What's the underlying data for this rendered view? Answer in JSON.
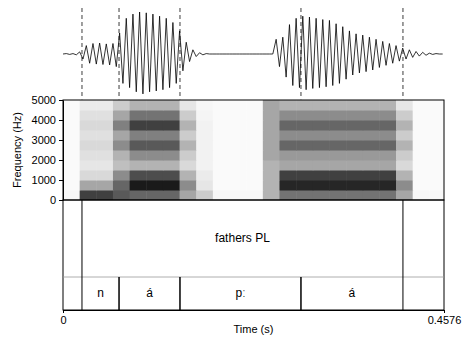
{
  "chart_data": {
    "type": "spectrogram",
    "x_label": "Time (s)",
    "y_label": "Frequency (Hz)",
    "xlim": [
      0,
      0.4576
    ],
    "xticks": [
      0,
      0.4576
    ],
    "ylim": [
      0,
      5000
    ],
    "yticks": [
      0,
      1000,
      2000,
      3000,
      4000,
      5000
    ],
    "waveform": {
      "ylim": [
        -1,
        1
      ],
      "x": [
        0,
        0.004,
        0.008,
        0.012,
        0.016,
        0.02,
        0.024,
        0.028,
        0.032,
        0.036,
        0.04,
        0.044,
        0.048,
        0.052,
        0.056,
        0.06,
        0.064,
        0.068,
        0.072,
        0.076,
        0.08,
        0.084,
        0.088,
        0.092,
        0.096,
        0.1,
        0.104,
        0.108,
        0.112,
        0.116,
        0.12,
        0.124,
        0.128,
        0.132,
        0.136,
        0.14,
        0.144,
        0.148,
        0.152,
        0.156,
        0.16,
        0.164,
        0.168,
        0.172,
        0.176,
        0.18,
        0.184,
        0.188,
        0.192,
        0.196,
        0.2,
        0.204,
        0.208,
        0.212,
        0.216,
        0.22,
        0.224,
        0.228,
        0.232,
        0.236,
        0.24,
        0.244,
        0.248,
        0.252,
        0.256,
        0.26,
        0.264,
        0.268,
        0.272,
        0.276,
        0.28,
        0.284,
        0.288,
        0.292,
        0.296,
        0.3,
        0.304,
        0.308,
        0.312,
        0.316,
        0.32,
        0.324,
        0.328,
        0.332,
        0.336,
        0.34,
        0.344,
        0.348,
        0.352,
        0.356,
        0.36,
        0.364,
        0.368,
        0.372,
        0.376,
        0.38,
        0.384,
        0.388,
        0.392,
        0.396,
        0.4,
        0.404,
        0.408,
        0.412,
        0.416,
        0.42,
        0.424,
        0.428,
        0.432,
        0.436,
        0.44,
        0.444,
        0.448,
        0.452,
        0.456
      ],
      "values": [
        0,
        0.01,
        -0.01,
        0.01,
        -0.02,
        0.05,
        -0.12,
        0.2,
        -0.22,
        0.25,
        -0.24,
        0.26,
        -0.25,
        0.24,
        -0.26,
        0.25,
        -0.3,
        0.5,
        -0.7,
        0.85,
        -0.8,
        0.95,
        -0.9,
        1.0,
        -0.95,
        0.98,
        -0.9,
        0.95,
        -0.88,
        0.9,
        -0.85,
        0.85,
        -0.8,
        0.75,
        -0.7,
        0.55,
        -0.4,
        0.28,
        -0.18,
        0.1,
        -0.06,
        0.03,
        -0.02,
        0.01,
        0,
        0,
        0,
        0,
        0,
        0,
        0,
        0,
        0,
        0,
        0,
        0,
        0,
        0,
        0,
        0,
        0,
        0,
        0,
        0,
        0.35,
        -0.3,
        0.4,
        -0.55,
        0.7,
        -0.75,
        0.85,
        -0.8,
        0.9,
        -0.85,
        0.88,
        -0.82,
        0.85,
        -0.8,
        0.82,
        -0.78,
        0.8,
        -0.75,
        0.72,
        -0.7,
        0.65,
        -0.6,
        0.55,
        -0.5,
        0.48,
        -0.45,
        0.45,
        -0.42,
        0.4,
        -0.38,
        0.35,
        -0.32,
        0.3,
        -0.27,
        0.25,
        -0.22,
        0.2,
        -0.17,
        0.14,
        -0.12,
        0.1,
        -0.08,
        0.06,
        -0.05,
        0.04,
        -0.03,
        0.02,
        -0.01,
        0.01,
        0,
        0
      ]
    },
    "spectrogram": {
      "intensity_range": [
        0,
        1
      ],
      "time_bins": [
        0,
        0.02,
        0.04,
        0.06,
        0.08,
        0.1,
        0.12,
        0.14,
        0.16,
        0.18,
        0.2,
        0.22,
        0.24,
        0.26,
        0.28,
        0.3,
        0.32,
        0.34,
        0.36,
        0.38,
        0.4,
        0.42,
        0.44,
        0.46
      ],
      "freq_bins": [
        0,
        500,
        1000,
        1500,
        2000,
        2500,
        3000,
        3500,
        4000,
        4500,
        5000
      ],
      "cells": [
        [
          0.03,
          0.75,
          0.75,
          0.65,
          0.6,
          0.6,
          0.6,
          0.35,
          0.2,
          0.03,
          0.03,
          0.03,
          0.3,
          0.55,
          0.55,
          0.55,
          0.55,
          0.55,
          0.55,
          0.55,
          0.35,
          0.03,
          0.03
        ],
        [
          0.02,
          0.35,
          0.35,
          0.6,
          0.9,
          0.9,
          0.9,
          0.45,
          0.1,
          0.02,
          0.02,
          0.02,
          0.3,
          0.85,
          0.85,
          0.85,
          0.85,
          0.85,
          0.85,
          0.85,
          0.45,
          0.02,
          0.02
        ],
        [
          0.02,
          0.15,
          0.15,
          0.45,
          0.7,
          0.7,
          0.7,
          0.3,
          0.08,
          0.02,
          0.02,
          0.02,
          0.3,
          0.75,
          0.75,
          0.75,
          0.75,
          0.75,
          0.75,
          0.75,
          0.3,
          0.02,
          0.02
        ],
        [
          0.02,
          0.1,
          0.1,
          0.25,
          0.3,
          0.3,
          0.3,
          0.15,
          0.05,
          0.02,
          0.02,
          0.02,
          0.3,
          0.35,
          0.35,
          0.35,
          0.35,
          0.35,
          0.35,
          0.35,
          0.15,
          0.02,
          0.02
        ],
        [
          0.02,
          0.12,
          0.12,
          0.3,
          0.45,
          0.45,
          0.45,
          0.2,
          0.05,
          0.02,
          0.02,
          0.02,
          0.35,
          0.4,
          0.4,
          0.4,
          0.4,
          0.4,
          0.4,
          0.4,
          0.2,
          0.02,
          0.02
        ],
        [
          0.02,
          0.15,
          0.15,
          0.45,
          0.65,
          0.65,
          0.65,
          0.3,
          0.05,
          0.02,
          0.02,
          0.02,
          0.35,
          0.6,
          0.6,
          0.6,
          0.6,
          0.6,
          0.6,
          0.6,
          0.3,
          0.02,
          0.02
        ],
        [
          0.02,
          0.12,
          0.12,
          0.35,
          0.5,
          0.5,
          0.5,
          0.2,
          0.05,
          0.02,
          0.02,
          0.02,
          0.35,
          0.45,
          0.45,
          0.45,
          0.45,
          0.45,
          0.45,
          0.45,
          0.2,
          0.02,
          0.02
        ],
        [
          0.02,
          0.15,
          0.15,
          0.5,
          0.75,
          0.75,
          0.75,
          0.3,
          0.05,
          0.02,
          0.02,
          0.02,
          0.35,
          0.6,
          0.6,
          0.6,
          0.6,
          0.6,
          0.6,
          0.6,
          0.3,
          0.02,
          0.02
        ],
        [
          0.02,
          0.12,
          0.12,
          0.35,
          0.55,
          0.55,
          0.55,
          0.2,
          0.04,
          0.02,
          0.02,
          0.02,
          0.35,
          0.45,
          0.45,
          0.45,
          0.45,
          0.45,
          0.45,
          0.45,
          0.2,
          0.02,
          0.02
        ],
        [
          0.02,
          0.08,
          0.08,
          0.2,
          0.3,
          0.3,
          0.3,
          0.1,
          0.03,
          0.02,
          0.02,
          0.02,
          0.35,
          0.3,
          0.3,
          0.3,
          0.3,
          0.3,
          0.3,
          0.3,
          0.1,
          0.02,
          0.02
        ]
      ]
    },
    "tiers": [
      {
        "intervals": [
          {
            "start": 0.0228,
            "end": 0.4083,
            "label": "fathers PL"
          }
        ]
      },
      {
        "intervals": [
          {
            "start": 0.0228,
            "end": 0.0673,
            "label": "n"
          },
          {
            "start": 0.0673,
            "end": 0.1405,
            "label": "á"
          },
          {
            "start": 0.1405,
            "end": 0.2858,
            "label": "pː"
          },
          {
            "start": 0.2858,
            "end": 0.4083,
            "label": "á"
          }
        ]
      }
    ]
  }
}
